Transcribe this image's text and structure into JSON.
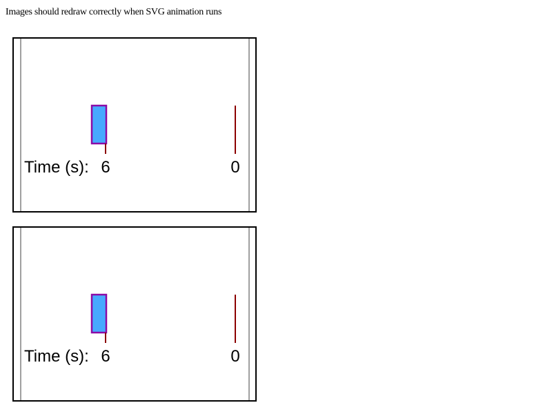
{
  "page": {
    "caption": "Images should redraw correctly when SVG animation runs"
  },
  "panels": [
    {
      "time_label": "Time (s):",
      "current_time": "6",
      "end_time": "0"
    },
    {
      "time_label": "Time (s):",
      "current_time": "6",
      "end_time": "0"
    }
  ],
  "colors": {
    "rect_fill": "#47a9ff",
    "rect_stroke": "#8b0aa6",
    "marker": "#8b0000",
    "inner_border": "#a0a0a0",
    "frame_border": "#000000"
  }
}
